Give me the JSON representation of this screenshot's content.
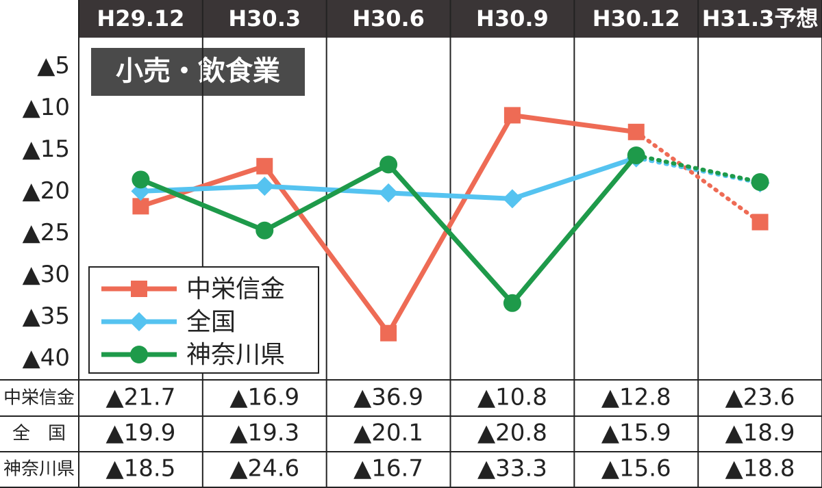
{
  "chart_data": {
    "type": "line",
    "title": "小売・飲食業",
    "categories": [
      "H29.12",
      "H30.3",
      "H30.6",
      "H30.9",
      "H30.12",
      "H31.3予想"
    ],
    "ylim": [
      -1.5,
      -42.5
    ],
    "yticks": [
      {
        "value": -5,
        "label": "▲5"
      },
      {
        "value": -10,
        "label": "▲10"
      },
      {
        "value": -15,
        "label": "▲15"
      },
      {
        "value": -20,
        "label": "▲20"
      },
      {
        "value": -25,
        "label": "▲25"
      },
      {
        "value": -30,
        "label": "▲30"
      },
      {
        "value": -35,
        "label": "▲35"
      },
      {
        "value": -40,
        "label": "▲40"
      }
    ],
    "forecast_last": true,
    "legend": "lower-left",
    "series": [
      {
        "name": "中栄信金",
        "color": "#ee6b55",
        "marker": "square",
        "values": [
          -21.7,
          -16.9,
          -36.9,
          -10.8,
          -12.8,
          -23.6
        ],
        "value_labels": [
          "▲21.7",
          "▲16.9",
          "▲36.9",
          "▲10.8",
          "▲12.8",
          "▲23.6"
        ]
      },
      {
        "name": "全国",
        "color": "#55c3f0",
        "marker": "diamond",
        "values": [
          -19.9,
          -19.3,
          -20.1,
          -20.8,
          -15.9,
          -18.9
        ],
        "value_labels": [
          "▲19.9",
          "▲19.3",
          "▲20.1",
          "▲20.8",
          "▲15.9",
          "▲18.9"
        ]
      },
      {
        "name": "神奈川県",
        "color": "#1e9a4a",
        "marker": "circle",
        "values": [
          -18.5,
          -24.6,
          -16.7,
          -33.3,
          -15.6,
          -18.8
        ],
        "value_labels": [
          "▲18.5",
          "▲24.6",
          "▲16.7",
          "▲33.3",
          "▲15.6",
          "▲18.8"
        ]
      }
    ],
    "table_row_labels": [
      "中栄信金",
      "全　国",
      "神奈川県"
    ]
  }
}
